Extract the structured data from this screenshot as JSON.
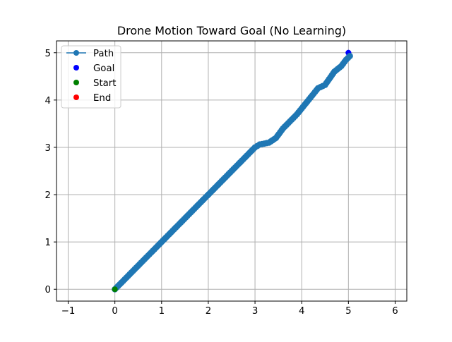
{
  "chart_data": {
    "type": "scatter",
    "title": "Drone Motion Toward Goal (No Learning)",
    "xlabel": "",
    "ylabel": "",
    "xlim": [
      -1.25,
      6.25
    ],
    "ylim": [
      -0.25,
      5.25
    ],
    "xticks": [
      -1,
      0,
      1,
      2,
      3,
      4,
      5,
      6
    ],
    "yticks": [
      0,
      1,
      2,
      3,
      4,
      5
    ],
    "grid": true,
    "legend": {
      "position": "top-left"
    },
    "series": [
      {
        "name": "Path",
        "kind": "line-markers",
        "color": "#1f77b4",
        "knots": [
          [
            0,
            0
          ],
          [
            3.0,
            3.0
          ],
          [
            3.1,
            3.06
          ],
          [
            3.3,
            3.1
          ],
          [
            3.45,
            3.2
          ],
          [
            3.6,
            3.4
          ],
          [
            3.9,
            3.7
          ],
          [
            4.35,
            4.25
          ],
          [
            4.5,
            4.32
          ],
          [
            4.7,
            4.6
          ],
          [
            4.85,
            4.72
          ],
          [
            4.95,
            4.85
          ],
          [
            5.03,
            4.93
          ]
        ],
        "marker_spacing": 0.05
      },
      {
        "name": "Goal",
        "kind": "point",
        "color": "#0000ff",
        "x": 5.0,
        "y": 5.0
      },
      {
        "name": "Start",
        "kind": "point",
        "color": "#008000",
        "x": 0.0,
        "y": 0.0
      },
      {
        "name": "End",
        "kind": "point",
        "color": "#ff0000",
        "x": 5.03,
        "y": 4.93
      }
    ]
  }
}
